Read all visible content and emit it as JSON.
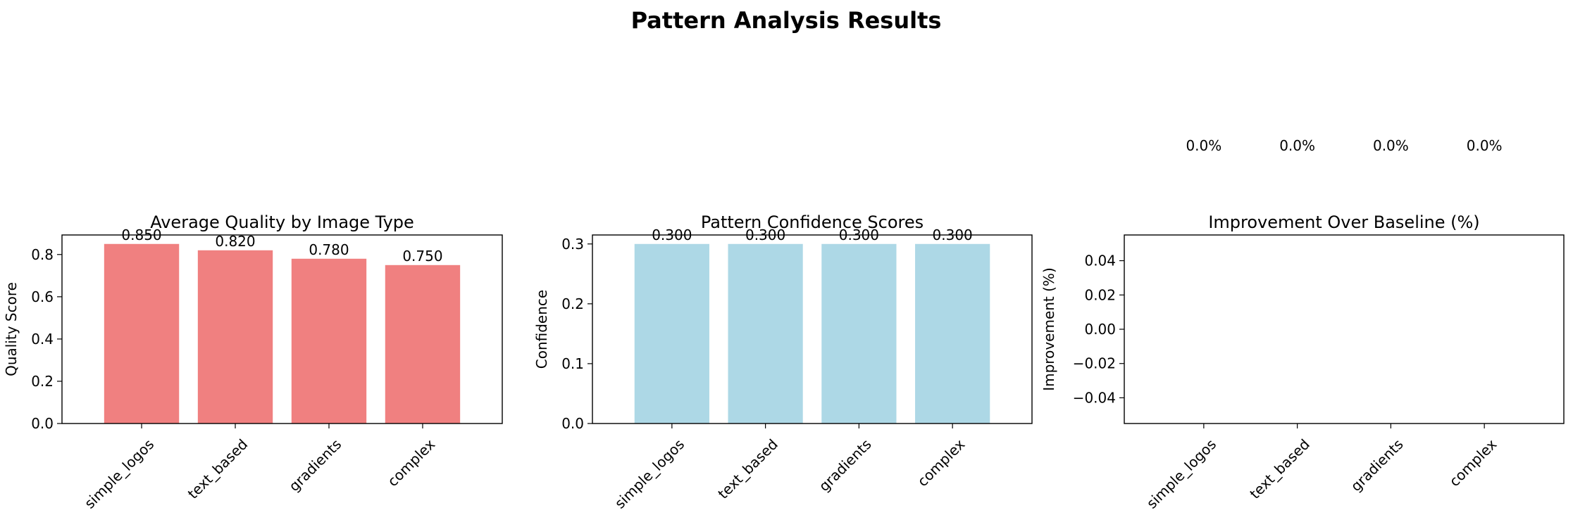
{
  "figure": {
    "title": "Pattern Analysis Results"
  },
  "chart_data": [
    {
      "type": "bar",
      "title": "Average Quality by Image Type",
      "xlabel": "",
      "ylabel": "Quality Score",
      "categories": [
        "simple_logos",
        "text_based",
        "gradients",
        "complex"
      ],
      "values": [
        0.85,
        0.82,
        0.78,
        0.75
      ],
      "value_labels": [
        "0.850",
        "0.820",
        "0.780",
        "0.750"
      ],
      "ylim": [
        0,
        0.8925
      ],
      "yticks": [
        0.0,
        0.2,
        0.4,
        0.6,
        0.8
      ],
      "ytick_labels": [
        "0.0",
        "0.2",
        "0.4",
        "0.6",
        "0.8"
      ],
      "color": "#f08080",
      "grid": false
    },
    {
      "type": "bar",
      "title": "Pattern Confidence Scores",
      "xlabel": "",
      "ylabel": "Confidence",
      "categories": [
        "simple_logos",
        "text_based",
        "gradients",
        "complex"
      ],
      "values": [
        0.3,
        0.3,
        0.3,
        0.3
      ],
      "value_labels": [
        "0.300",
        "0.300",
        "0.300",
        "0.300"
      ],
      "ylim": [
        0,
        0.315
      ],
      "yticks": [
        0.0,
        0.1,
        0.2,
        0.3
      ],
      "ytick_labels": [
        "0.0",
        "0.1",
        "0.2",
        "0.3"
      ],
      "color": "#add8e6",
      "grid": false
    },
    {
      "type": "bar",
      "title": "Improvement Over Baseline (%)",
      "xlabel": "",
      "ylabel": "Improvement (%)",
      "categories": [
        "simple_logos",
        "text_based",
        "gradients",
        "complex"
      ],
      "values": [
        0.0,
        0.0,
        0.0,
        0.0
      ],
      "value_labels": [
        "0.0%",
        "0.0%",
        "0.0%",
        "0.0%"
      ],
      "ylim": [
        -0.055,
        0.055
      ],
      "yticks": [
        -0.04,
        -0.02,
        0.0,
        0.02,
        0.04
      ],
      "ytick_labels": [
        "−0.04",
        "−0.02",
        "0.00",
        "0.02",
        "0.04"
      ],
      "color": "#90ee90",
      "grid": false
    }
  ]
}
